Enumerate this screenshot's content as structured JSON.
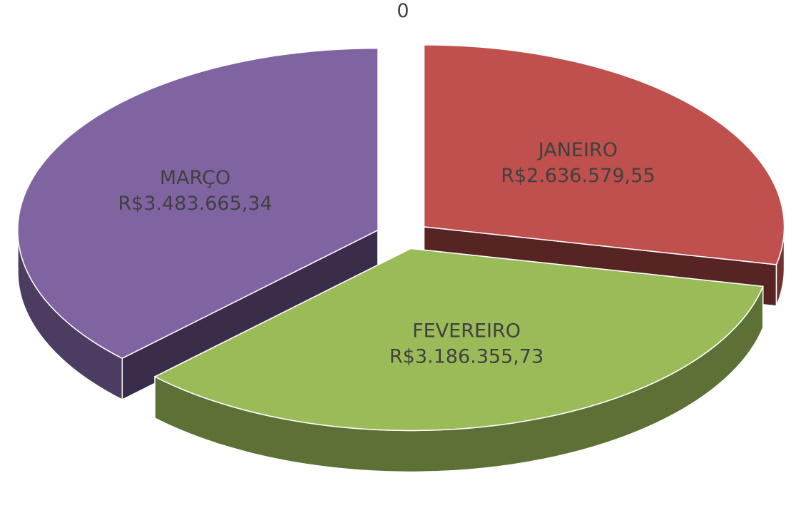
{
  "chart_data": {
    "type": "pie3d",
    "categories": [
      "JANEIRO",
      "FEVEREIRO",
      "MARÇO",
      null
    ],
    "values": [
      2636579.55,
      3186355.73,
      3483665.34,
      0
    ],
    "value_labels": [
      "R$2.636.579,55",
      "R$3.186.355,73",
      "R$3.483.665,34",
      "0"
    ],
    "colors": [
      "#c0504d",
      "#9bbb59",
      "#8064a2",
      "#4f81bd"
    ]
  }
}
